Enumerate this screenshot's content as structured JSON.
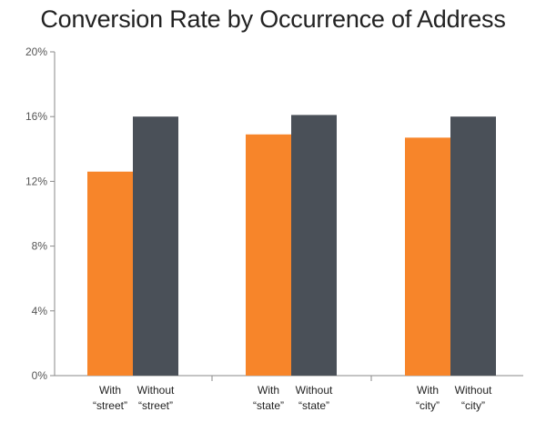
{
  "chart_data": {
    "type": "bar",
    "title": "Conversion Rate by Occurrence of Address",
    "xlabel": "",
    "ylabel": "",
    "ylim": [
      0,
      20
    ],
    "yticks": [
      0,
      4,
      8,
      12,
      16,
      20
    ],
    "ytick_labels": [
      "0%",
      "4%",
      "8%",
      "12%",
      "16%",
      "20%"
    ],
    "grid": false,
    "legend": "none",
    "groups": [
      {
        "bars": [
          {
            "label_line1": "With",
            "label_line2": "“street”",
            "value": 12.6,
            "series": "with"
          },
          {
            "label_line1": "Without",
            "label_line2": "“street”",
            "value": 16.0,
            "series": "without"
          }
        ]
      },
      {
        "bars": [
          {
            "label_line1": "With",
            "label_line2": "“state”",
            "value": 14.9,
            "series": "with"
          },
          {
            "label_line1": "Without",
            "label_line2": "“state”",
            "value": 16.1,
            "series": "without"
          }
        ]
      },
      {
        "bars": [
          {
            "label_line1": "With",
            "label_line2": "“city”",
            "value": 14.7,
            "series": "with"
          },
          {
            "label_line1": "Without",
            "label_line2": "“city”",
            "value": 16.0,
            "series": "without"
          }
        ]
      }
    ],
    "colors": {
      "with": "#f7852a",
      "without": "#4a5058",
      "axis": "#8a8a8a"
    }
  }
}
